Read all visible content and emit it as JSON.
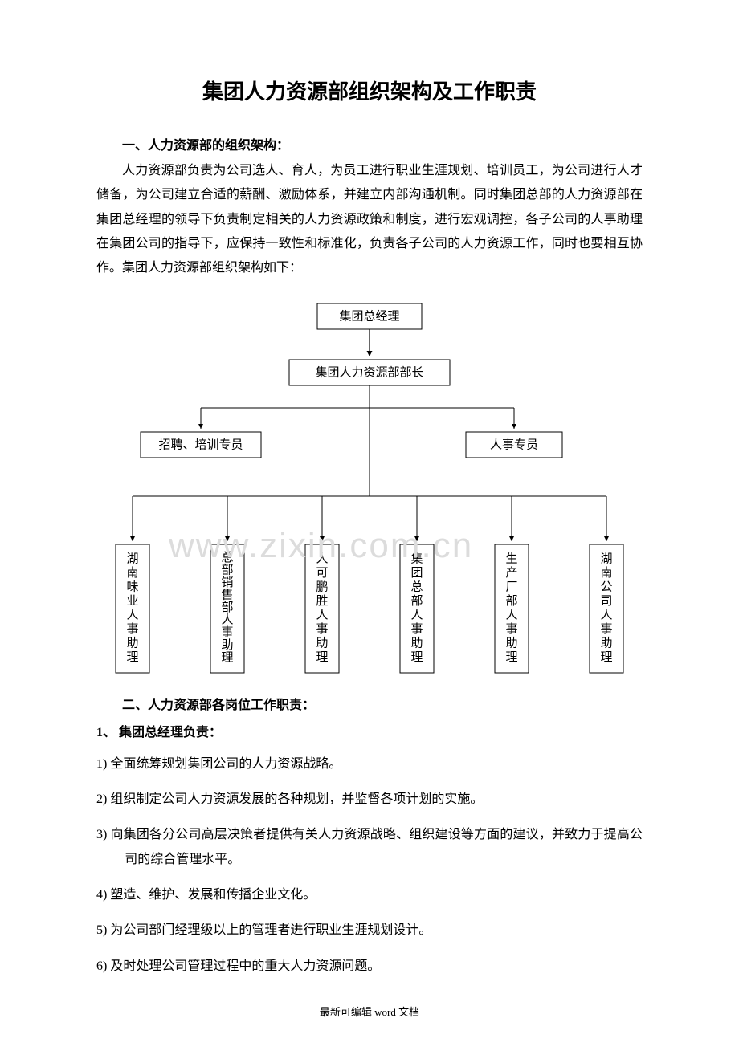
{
  "title": "集团人力资源部组织架构及工作职责",
  "section1_title": "一、人力资源部的组织架构：",
  "intro_para": "人力资源部负责为公司选人、育人，为员工进行职业生涯规划、培训员工，为公司进行人才储备，为公司建立合适的薪酬、激励体系，并建立内部沟通机制。同时集团总部的人力资源部在集团总经理的领导下负责制定相关的人力资源政策和制度，进行宏观调控，各子公司的人事助理在集团公司的指导下，应保持一致性和标准化，负责各子公司的人力资源工作，同时也要相互协作。集团人力资源部组织架构如下：",
  "watermark": "www.zixin.com.cn",
  "orgchart": {
    "stroke": "#000000",
    "stroke_width": 1,
    "fill": "#ffffff",
    "arrow_size": 6,
    "level1": {
      "label": "集团总经理"
    },
    "level2": {
      "label": "集团人力资源部部长"
    },
    "level3": [
      {
        "label": "招聘、培训专员"
      },
      {
        "label": "人事专员"
      }
    ],
    "level4": [
      {
        "label": "湖南味业人事助理"
      },
      {
        "label": "总部销售部人事助理"
      },
      {
        "label": "人可鹏胜人事助理"
      },
      {
        "label": "集团总部人事助理"
      },
      {
        "label": "生产厂部人事助理"
      },
      {
        "label": "湖南公司人事助理"
      }
    ]
  },
  "section2_title": "二、人力资源部各岗位工作职责：",
  "sub1_title": "1、  集团总经理负责：",
  "duties": [
    "1)   全面统筹规划集团公司的人力资源战略。",
    "2)   组织制定公司人力资源发展的各种规划，并监督各项计划的实施。",
    "3)   向集团各分公司高层决策者提供有关人力资源战略、组织建设等方面的建议，并致力于提高公司的综合管理水平。",
    "4)   塑造、维护、发展和传播企业文化。",
    "5)   为公司部门经理级以上的管理者进行职业生涯规划设计。",
    "6)   及时处理公司管理过程中的重大人力资源问题。"
  ],
  "footer": "最新可编辑 word 文档"
}
